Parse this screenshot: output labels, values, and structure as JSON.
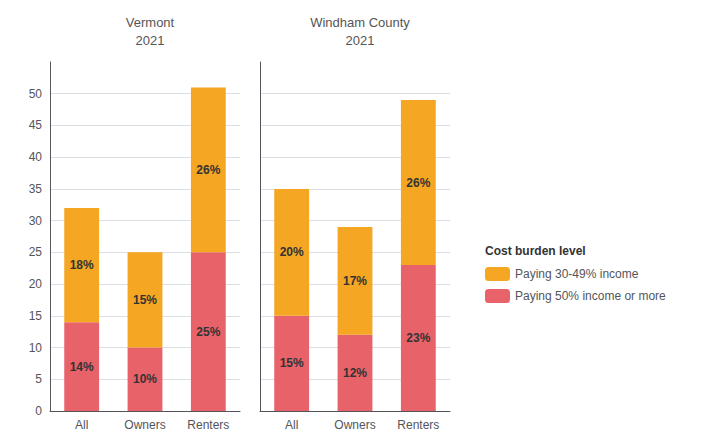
{
  "chart_data": [
    {
      "type": "bar",
      "title": "Vermont\n2021",
      "categories": [
        "All",
        "Owners",
        "Renters"
      ],
      "series": [
        {
          "name": "Paying 50% income or more",
          "color": "#E8626A",
          "values": [
            14,
            10,
            25
          ],
          "value_labels": [
            "14%",
            "10%",
            "25%"
          ]
        },
        {
          "name": "Paying 30-49% income",
          "color": "#F5A623",
          "values": [
            18,
            15,
            26
          ],
          "value_labels": [
            "18%",
            "15%",
            "26%"
          ]
        }
      ],
      "stacked": true,
      "data_labels": true,
      "grid": true,
      "ylim": [
        0,
        55
      ],
      "yticks": [
        0,
        5,
        10,
        15,
        20,
        25,
        30,
        35,
        40,
        45,
        50
      ]
    },
    {
      "type": "bar",
      "title": "Windham County\n2021",
      "categories": [
        "All",
        "Owners",
        "Renters"
      ],
      "series": [
        {
          "name": "Paying 50% income or more",
          "color": "#E8626A",
          "values": [
            15,
            12,
            23
          ],
          "value_labels": [
            "15%",
            "12%",
            "23%"
          ]
        },
        {
          "name": "Paying 30-49% income",
          "color": "#F5A623",
          "values": [
            20,
            17,
            26
          ],
          "value_labels": [
            "20%",
            "17%",
            "26%"
          ]
        }
      ],
      "stacked": true,
      "data_labels": true,
      "grid": true,
      "tick_labels": "x",
      "ylim": [
        0,
        55
      ],
      "yticks": [
        0,
        5,
        10,
        15,
        20,
        25,
        30,
        35,
        40,
        45,
        50
      ],
      "legend": "right",
      "legend_title": "Cost burden level"
    }
  ]
}
